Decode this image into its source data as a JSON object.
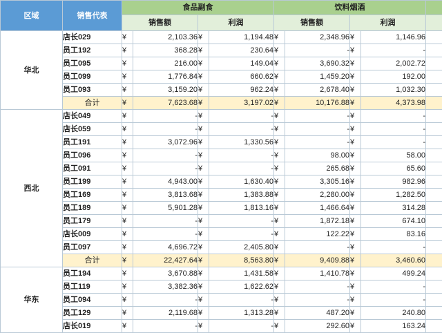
{
  "header": {
    "region": "区域",
    "rep": "销售代表",
    "groups": [
      "食品副食",
      "饮料烟酒"
    ],
    "sub": [
      "销售额",
      "利润",
      "销售额",
      "利润"
    ]
  },
  "currency": "¥",
  "regions": [
    {
      "name": "华北",
      "rows": [
        {
          "rep": "店长029",
          "v": [
            "2,103.36",
            "1,194.48",
            "2,348.96",
            "1,146.96"
          ]
        },
        {
          "rep": "员工192",
          "v": [
            "368.28",
            "230.64",
            "-",
            "-"
          ]
        },
        {
          "rep": "员工095",
          "v": [
            "216.00",
            "149.04",
            "3,690.32",
            "2,002.72"
          ]
        },
        {
          "rep": "员工099",
          "v": [
            "1,776.84",
            "660.62",
            "1,459.20",
            "192.00"
          ]
        },
        {
          "rep": "员工093",
          "v": [
            "3,159.20",
            "962.24",
            "2,678.40",
            "1,032.30"
          ]
        }
      ],
      "total": {
        "label": "合计",
        "v": [
          "7,623.68",
          "3,197.02",
          "10,176.88",
          "4,373.98"
        ]
      }
    },
    {
      "name": "西北",
      "rows": [
        {
          "rep": "店长049",
          "v": [
            "-",
            "-",
            "-",
            "-"
          ]
        },
        {
          "rep": "店长059",
          "v": [
            "-",
            "-",
            "-",
            "-"
          ]
        },
        {
          "rep": "员工191",
          "v": [
            "3,072.96",
            "1,330.56",
            "-",
            "-"
          ]
        },
        {
          "rep": "员工096",
          "v": [
            "-",
            "-",
            "98.00",
            "58.00"
          ]
        },
        {
          "rep": "员工091",
          "v": [
            "-",
            "-",
            "265.68",
            "65.60"
          ]
        },
        {
          "rep": "员工199",
          "v": [
            "4,943.00",
            "1,630.40",
            "3,305.16",
            "982.96"
          ]
        },
        {
          "rep": "员工169",
          "v": [
            "3,813.68",
            "1,383.88",
            "2,280.00",
            "1,282.50"
          ]
        },
        {
          "rep": "员工189",
          "v": [
            "5,901.28",
            "1,813.16",
            "1,466.64",
            "314.28"
          ]
        },
        {
          "rep": "员工179",
          "v": [
            "-",
            "-",
            "1,872.18",
            "674.10"
          ]
        },
        {
          "rep": "店长009",
          "v": [
            "-",
            "-",
            "122.22",
            "83.16"
          ]
        },
        {
          "rep": "员工097",
          "v": [
            "4,696.72",
            "2,405.80",
            "-",
            "-"
          ]
        }
      ],
      "total": {
        "label": "合计",
        "v": [
          "22,427.64",
          "8,563.80",
          "9,409.88",
          "3,460.60"
        ]
      }
    },
    {
      "name": "华东",
      "rows": [
        {
          "rep": "员工194",
          "v": [
            "3,670.88",
            "1,431.58",
            "1,410.78",
            "499.24"
          ]
        },
        {
          "rep": "员工119",
          "v": [
            "3,382.36",
            "1,622.62",
            "-",
            "-"
          ]
        },
        {
          "rep": "员工094",
          "v": [
            "-",
            "-",
            "-",
            "-"
          ]
        },
        {
          "rep": "员工129",
          "v": [
            "2,119.68",
            "1,313.28",
            "487.20",
            "240.80"
          ]
        },
        {
          "rep": "店长019",
          "v": [
            "-",
            "-",
            "292.60",
            "163.24"
          ]
        }
      ]
    }
  ]
}
